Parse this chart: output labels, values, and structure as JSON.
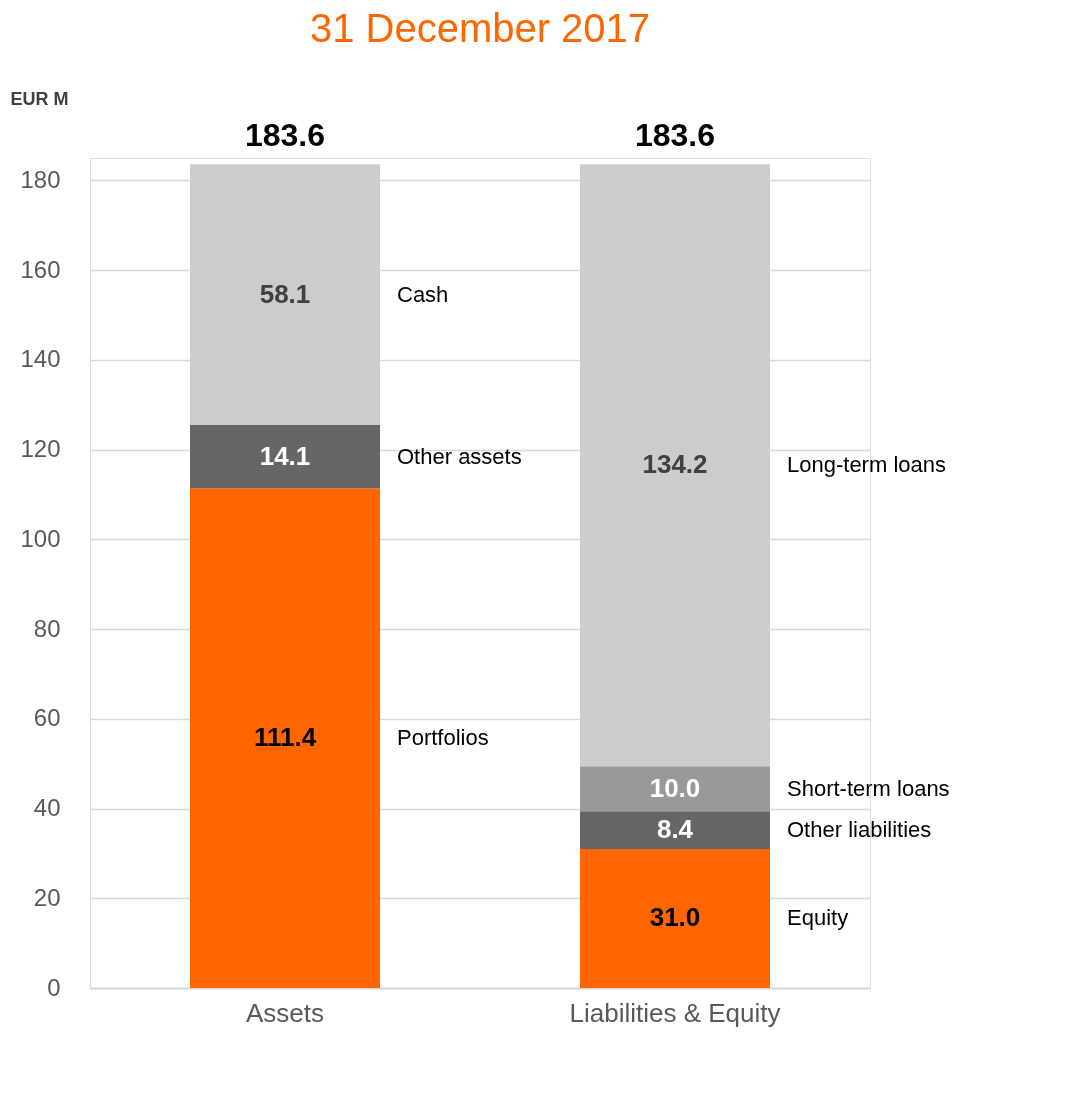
{
  "chart_data": {
    "type": "bar",
    "title": "31 December 2017",
    "ylabel": "EUR M",
    "categories": [
      "Assets",
      "Liabilities & Equity"
    ],
    "stacked": true,
    "series": [
      {
        "name": "Portfolios",
        "color": "#ff6600",
        "values": [
          111.4,
          null
        ],
        "value_labels": [
          "111.4",
          null
        ]
      },
      {
        "name": "Equity",
        "color": "#ff6600",
        "values": [
          null,
          31.0
        ],
        "value_labels": [
          null,
          "31.0"
        ]
      },
      {
        "name": "Other assets",
        "color": "#666666",
        "values": [
          14.1,
          null
        ],
        "value_labels": [
          "14.1",
          null
        ]
      },
      {
        "name": "Other liabilities",
        "color": "#666666",
        "values": [
          null,
          8.4
        ],
        "value_labels": [
          null,
          "8.4"
        ]
      },
      {
        "name": "Short-term loans",
        "color": "#999999",
        "values": [
          null,
          10.0
        ],
        "value_labels": [
          null,
          "10.0"
        ]
      },
      {
        "name": "Cash",
        "color": "#cccccc",
        "values": [
          58.1,
          null
        ],
        "value_labels": [
          "58.1",
          null
        ]
      },
      {
        "name": "Long-term loans",
        "color": "#cccccc",
        "values": [
          null,
          134.2
        ],
        "value_labels": [
          null,
          "134.2"
        ]
      }
    ],
    "totals": [
      "183.6",
      "183.6"
    ],
    "ylim": [
      0,
      185
    ],
    "yticks": [
      0,
      20,
      40,
      60,
      80,
      100,
      120,
      140,
      160,
      180
    ],
    "grid": "y",
    "legend": false
  }
}
